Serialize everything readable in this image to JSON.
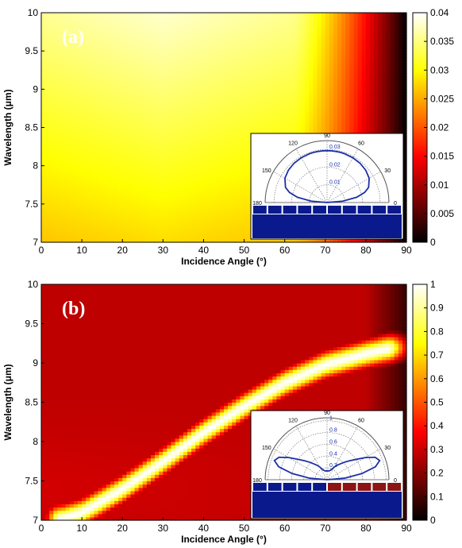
{
  "chart_data": [
    {
      "type": "heatmap",
      "panel_label": "(a)",
      "xlabel": "Incidence Angle (°)",
      "ylabel": "Wavelength (μm)",
      "xlim": [
        0,
        90
      ],
      "ylim": [
        7,
        10
      ],
      "xticks": [
        0,
        10,
        20,
        30,
        40,
        50,
        60,
        70,
        80,
        90
      ],
      "yticks": [
        7,
        7.5,
        8,
        8.5,
        9,
        9.5,
        10
      ],
      "colorbar": {
        "range": [
          0,
          0.04
        ],
        "colormap": "hot",
        "ticks": [
          0,
          0.005,
          0.01,
          0.015,
          0.02,
          0.025,
          0.03,
          0.035,
          0.04
        ]
      },
      "field": "broad emissivity ≈0.03–0.038 at angles 0–60°, maximum near 25–35° at 9–10 μm, falling to 0 at 90°",
      "inset_polar": {
        "angle_ticks": [
          "90",
          "60",
          "30",
          "0",
          "120",
          "150",
          "180"
        ],
        "radial_ticks": [
          "0.01",
          "0.02",
          "0.03"
        ],
        "rmax": 0.035,
        "curve_color": "#1c2fa8",
        "angles_deg": [
          0,
          5,
          10,
          15,
          20,
          30,
          40,
          50,
          60,
          70,
          75,
          80,
          85,
          90
        ],
        "r": [
          0.0,
          0.009,
          0.017,
          0.022,
          0.025,
          0.0275,
          0.0285,
          0.029,
          0.0292,
          0.0293,
          0.0293,
          0.0293,
          0.0293,
          0.0293
        ],
        "grating_colors": [
          "#0a1a8c",
          "#0a1a8c"
        ]
      }
    },
    {
      "type": "heatmap",
      "panel_label": "(b)",
      "xlabel": "Incidence Angle (°)",
      "ylabel": "Wavelength (μm)",
      "xlim": [
        0,
        90
      ],
      "ylim": [
        7,
        10
      ],
      "xticks": [
        0,
        10,
        20,
        30,
        40,
        50,
        60,
        70,
        80,
        90
      ],
      "yticks": [
        7,
        7.5,
        8,
        8.5,
        9,
        9.5,
        10
      ],
      "colorbar": {
        "range": [
          0,
          1
        ],
        "colormap": "hot",
        "ticks": [
          0,
          0.1,
          0.2,
          0.3,
          0.4,
          0.5,
          0.6,
          0.7,
          0.8,
          0.9,
          1
        ]
      },
      "resonance_band": {
        "angle_deg": [
          5,
          10,
          20,
          30,
          40,
          50,
          60,
          70,
          80,
          85,
          88
        ],
        "wavelength_um": [
          7.02,
          7.1,
          7.4,
          7.75,
          8.12,
          8.45,
          8.75,
          8.98,
          9.12,
          9.18,
          9.2
        ]
      },
      "inset_polar": {
        "angle_ticks": [
          "90",
          "60",
          "30",
          "0",
          "120",
          "150",
          "180"
        ],
        "radial_ticks": [
          "0.2",
          "0.4",
          "0.6",
          "0.8",
          "1"
        ],
        "rmax": 1.05,
        "curve_color": "#1c2fa8",
        "angles_deg": [
          0,
          5,
          10,
          15,
          20,
          25,
          30,
          35,
          40,
          45,
          50,
          55,
          60,
          65,
          70,
          80,
          90
        ],
        "r": [
          0.0,
          0.3,
          0.6,
          0.85,
          0.95,
          0.9,
          0.75,
          0.6,
          0.5,
          0.42,
          0.35,
          0.3,
          0.25,
          0.2,
          0.17,
          0.15,
          0.15
        ],
        "grating_colors": [
          "#0a1a8c",
          "#8c1414"
        ]
      }
    }
  ]
}
